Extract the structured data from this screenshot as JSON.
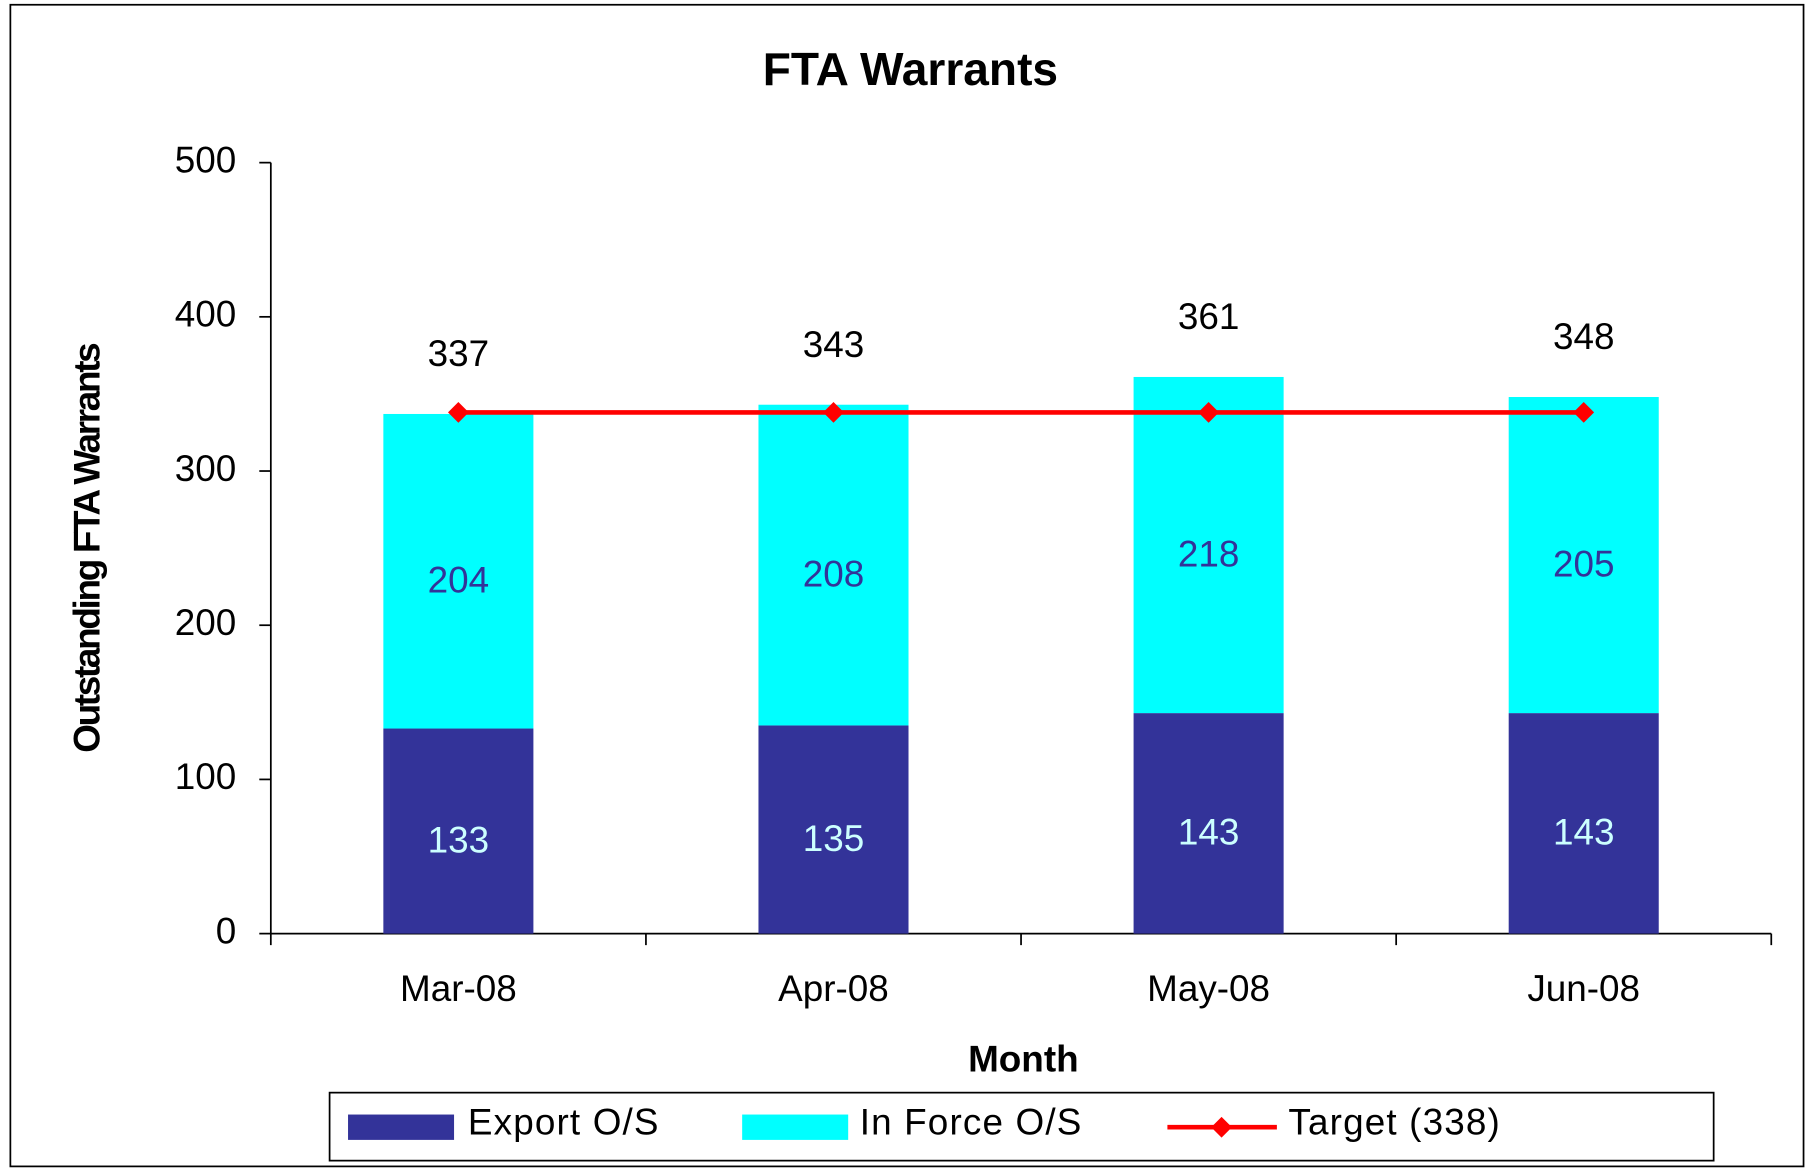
{
  "chart_data": {
    "type": "bar",
    "stacked": true,
    "title": "FTA Warrants",
    "x_label": "Month",
    "y_label": "Outstanding FTA Warrants",
    "categories": [
      "Mar-08",
      "Apr-08",
      "May-08",
      "Jun-08"
    ],
    "series": [
      {
        "name": "Export O/S",
        "color": "#333399",
        "label_color": "#ccffff",
        "values": [
          133,
          135,
          143,
          143
        ]
      },
      {
        "name": "In Force O/S",
        "color": "#00ffff",
        "label_color": "#333399",
        "values": [
          204,
          208,
          218,
          205
        ]
      },
      {
        "name": "Target (338)",
        "type": "line",
        "color": "#ff0000",
        "values": [
          338,
          338,
          338,
          338
        ]
      }
    ],
    "totals": [
      337,
      343,
      361,
      348
    ],
    "ylim": [
      0,
      500
    ],
    "yticks": [
      0,
      100,
      200,
      300,
      400,
      500
    ],
    "legend": "bottom"
  }
}
